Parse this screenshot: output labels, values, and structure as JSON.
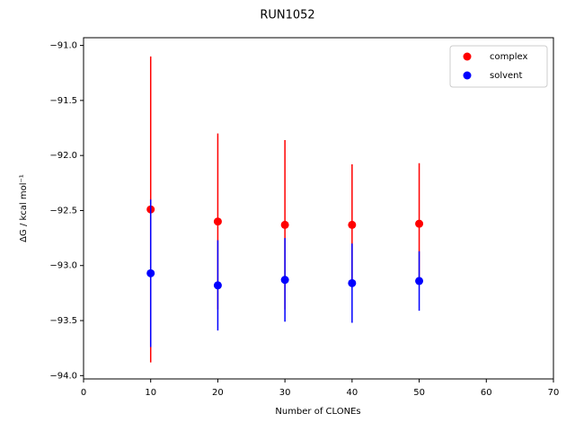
{
  "chart_data": {
    "type": "errorbar-scatter",
    "title": "RUN1052",
    "xlabel": "Number of CLONEs",
    "ylabel": "ΔG / kcal mol⁻¹",
    "x": [
      10,
      20,
      30,
      40,
      50
    ],
    "series": [
      {
        "name": "complex",
        "color": "#ff0000",
        "values": [
          -92.49,
          -92.6,
          -92.63,
          -92.63,
          -92.62
        ],
        "errors": [
          1.39,
          0.8,
          0.77,
          0.55,
          0.55
        ]
      },
      {
        "name": "solvent",
        "color": "#0000ff",
        "values": [
          -93.07,
          -93.18,
          -93.13,
          -93.16,
          -93.14
        ],
        "errors": [
          0.67,
          0.41,
          0.38,
          0.36,
          0.27
        ]
      }
    ],
    "xlim": [
      0,
      70
    ],
    "xticks": [
      0,
      10,
      20,
      30,
      40,
      50,
      60,
      70
    ],
    "ylim": [
      -94.03,
      -90.93
    ],
    "yticks": [
      {
        "value": -94.0,
        "label": "−94.0"
      },
      {
        "value": -93.5,
        "label": "−93.5"
      },
      {
        "value": -93.0,
        "label": "−93.0"
      },
      {
        "value": -92.5,
        "label": "−92.5"
      },
      {
        "value": -92.0,
        "label": "−92.0"
      },
      {
        "value": -91.5,
        "label": "−91.5"
      },
      {
        "value": -91.0,
        "label": "−91.0"
      }
    ],
    "legend": "upper right"
  }
}
